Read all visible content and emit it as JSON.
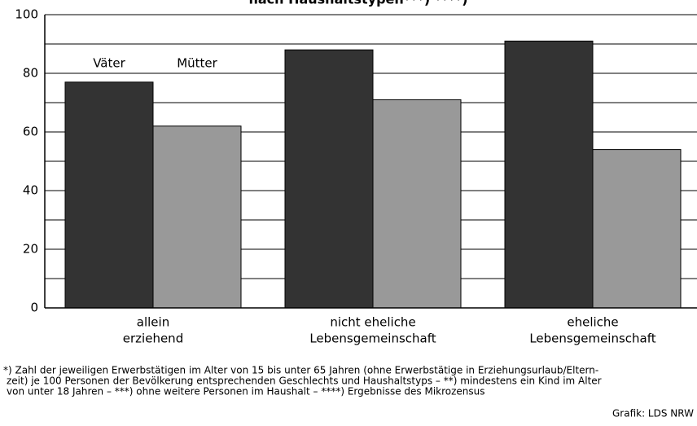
{
  "chart_data": {
    "type": "bar",
    "title": "nach Haushaltstypen***) ****)",
    "categories": [
      [
        "allein",
        "erziehend"
      ],
      [
        "nicht eheliche",
        "Lebensgemeinschaft"
      ],
      [
        "eheliche",
        "Lebensgemeinschaft"
      ]
    ],
    "series": [
      {
        "name": "Väter",
        "color": "#333333",
        "values": [
          77,
          88,
          91
        ]
      },
      {
        "name": "Mütter",
        "color": "#999999",
        "values": [
          62,
          71,
          54
        ]
      }
    ],
    "ylim": [
      0,
      100
    ],
    "yticks": [
      0,
      20,
      40,
      60,
      80,
      100
    ],
    "minor_yticks": [
      10,
      30,
      50,
      70,
      90
    ],
    "grid": true,
    "footnotes": [
      "*) Zahl der jeweiligen Erwerbstätigen im Alter von 15 bis unter 65 Jahren (ohne Erwerbstätige in Erziehungsurlaub/Eltern-",
      "zeit) je 100 Personen der Bevölkerung entsprechenden Geschlechts und Haushaltstyps – **) mindestens ein Kind im Alter",
      "von unter 18 Jahren – ***) ohne weitere Personen im Haushalt – ****) Ergebnisse des Mikrozensus"
    ],
    "source": "Grafik: LDS NRW"
  }
}
